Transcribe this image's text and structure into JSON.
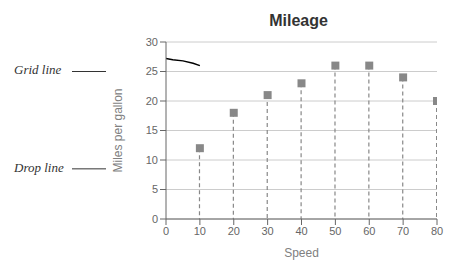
{
  "chart_data": {
    "type": "scatter",
    "title": "Mileage",
    "xlabel": "Speed",
    "ylabel": "Miles per gallon",
    "xlim": [
      0,
      80
    ],
    "ylim": [
      0,
      30
    ],
    "xticks": [
      0,
      10,
      20,
      30,
      40,
      50,
      60,
      70,
      80
    ],
    "yticks": [
      0,
      5,
      10,
      15,
      20,
      25,
      30
    ],
    "grid": true,
    "series": [
      {
        "type": "stem",
        "x": [
          10,
          20,
          30,
          40,
          50,
          60,
          70,
          80
        ],
        "values": [
          12,
          18,
          21,
          23,
          26,
          26,
          24,
          20
        ],
        "color": "#888888",
        "marker": "square",
        "line_style": "dashed"
      },
      {
        "type": "line",
        "x": [
          0,
          2,
          5,
          8,
          10
        ],
        "values": [
          27.2,
          27.0,
          26.8,
          26.4,
          26.0
        ],
        "color": "#000000",
        "line_style": "solid"
      }
    ],
    "annotations": [
      {
        "text": "Grid line",
        "y": 25
      },
      {
        "text": "Drop line",
        "y": 8.5
      }
    ]
  }
}
